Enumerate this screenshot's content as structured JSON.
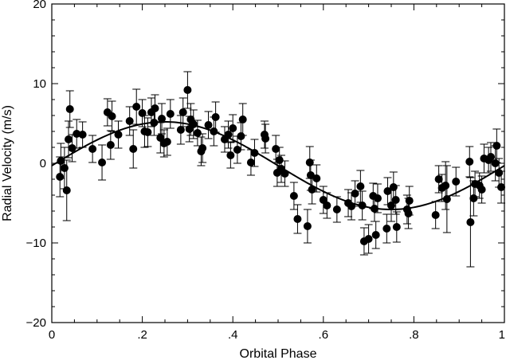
{
  "chart_data": {
    "type": "scatter",
    "title": "",
    "xlabel": "Orbital Phase",
    "ylabel": "Radial Velocity (m/s)",
    "xlim": [
      0,
      1
    ],
    "ylim": [
      -20,
      20
    ],
    "grid": false,
    "x_ticks": [
      0,
      0.2,
      0.4,
      0.6,
      0.8,
      1
    ],
    "x_tick_labels": [
      "0",
      ".2",
      ".4",
      ".6",
      ".8",
      "1"
    ],
    "y_ticks": [
      -20,
      -10,
      0,
      10,
      20
    ],
    "y_tick_labels": [
      "−20",
      "−10",
      "0",
      "10",
      "20"
    ],
    "fit_curve": {
      "type": "sinusoid",
      "semi_amplitude": 5.5,
      "offset": -0.3,
      "phase_of_max": 0.25
    },
    "points": [
      {
        "x": 0.018,
        "y": -1.7,
        "err": 2.5
      },
      {
        "x": 0.02,
        "y": 0.3,
        "err": 2.2
      },
      {
        "x": 0.028,
        "y": -0.6,
        "err": 2.6
      },
      {
        "x": 0.033,
        "y": -3.4,
        "err": 3.8
      },
      {
        "x": 0.037,
        "y": 3.0,
        "err": 2.3
      },
      {
        "x": 0.04,
        "y": 6.8,
        "err": 2.3
      },
      {
        "x": 0.045,
        "y": 1.9,
        "err": 1.7
      },
      {
        "x": 0.055,
        "y": 3.7,
        "err": 1.8
      },
      {
        "x": 0.068,
        "y": 3.6,
        "err": 1.6
      },
      {
        "x": 0.09,
        "y": 1.8,
        "err": 1.7
      },
      {
        "x": 0.111,
        "y": 0.1,
        "err": 2.2
      },
      {
        "x": 0.123,
        "y": 6.4,
        "err": 1.7
      },
      {
        "x": 0.13,
        "y": 2.3,
        "err": 1.8
      },
      {
        "x": 0.133,
        "y": 5.9,
        "err": 1.9
      },
      {
        "x": 0.147,
        "y": 3.6,
        "err": 1.7
      },
      {
        "x": 0.172,
        "y": 5.3,
        "err": 1.8
      },
      {
        "x": 0.18,
        "y": 1.8,
        "err": 2.4
      },
      {
        "x": 0.187,
        "y": 7.1,
        "err": 2.2
      },
      {
        "x": 0.2,
        "y": 6.3,
        "err": 1.7
      },
      {
        "x": 0.205,
        "y": 4.0,
        "err": 2.0
      },
      {
        "x": 0.212,
        "y": 3.9,
        "err": 1.8
      },
      {
        "x": 0.22,
        "y": 6.4,
        "err": 1.8
      },
      {
        "x": 0.226,
        "y": 5.1,
        "err": 1.6
      },
      {
        "x": 0.228,
        "y": 6.9,
        "err": 1.7
      },
      {
        "x": 0.24,
        "y": 3.2,
        "err": 1.9
      },
      {
        "x": 0.243,
        "y": 5.6,
        "err": 1.9
      },
      {
        "x": 0.248,
        "y": 2.5,
        "err": 1.7
      },
      {
        "x": 0.255,
        "y": 2.7,
        "err": 1.7
      },
      {
        "x": 0.262,
        "y": 6.2,
        "err": 1.8
      },
      {
        "x": 0.285,
        "y": 4.2,
        "err": 1.8
      },
      {
        "x": 0.29,
        "y": 6.4,
        "err": 1.8
      },
      {
        "x": 0.3,
        "y": 9.2,
        "err": 2.3
      },
      {
        "x": 0.304,
        "y": 4.3,
        "err": 1.6
      },
      {
        "x": 0.307,
        "y": 5.5,
        "err": 2.0
      },
      {
        "x": 0.313,
        "y": 4.9,
        "err": 1.8
      },
      {
        "x": 0.322,
        "y": 3.8,
        "err": 1.6
      },
      {
        "x": 0.33,
        "y": 1.5,
        "err": 1.8
      },
      {
        "x": 0.333,
        "y": 1.9,
        "err": 1.8
      },
      {
        "x": 0.346,
        "y": 4.8,
        "err": 1.7
      },
      {
        "x": 0.358,
        "y": 4.0,
        "err": 1.8
      },
      {
        "x": 0.362,
        "y": 5.8,
        "err": 1.9
      },
      {
        "x": 0.382,
        "y": 3.0,
        "err": 1.6
      },
      {
        "x": 0.39,
        "y": 3.6,
        "err": 1.7
      },
      {
        "x": 0.395,
        "y": 1.0,
        "err": 1.6
      },
      {
        "x": 0.4,
        "y": 4.4,
        "err": 1.7
      },
      {
        "x": 0.41,
        "y": 1.7,
        "err": 1.7
      },
      {
        "x": 0.418,
        "y": 3.4,
        "err": 1.7
      },
      {
        "x": 0.422,
        "y": 5.5,
        "err": 2.0
      },
      {
        "x": 0.44,
        "y": 0.1,
        "err": 1.6
      },
      {
        "x": 0.448,
        "y": 1.3,
        "err": 1.7
      },
      {
        "x": 0.47,
        "y": 3.6,
        "err": 1.7
      },
      {
        "x": 0.472,
        "y": 3.1,
        "err": 1.8
      },
      {
        "x": 0.495,
        "y": 1.8,
        "err": 1.7
      },
      {
        "x": 0.498,
        "y": -1.2,
        "err": 1.7
      },
      {
        "x": 0.503,
        "y": 0.4,
        "err": 1.6
      },
      {
        "x": 0.507,
        "y": -0.7,
        "err": 1.7
      },
      {
        "x": 0.515,
        "y": -1.3,
        "err": 1.6
      },
      {
        "x": 0.535,
        "y": -4.1,
        "err": 1.7
      },
      {
        "x": 0.543,
        "y": -7.0,
        "err": 1.8
      },
      {
        "x": 0.565,
        "y": -7.9,
        "err": 2.1
      },
      {
        "x": 0.57,
        "y": 0.1,
        "err": 2.0
      },
      {
        "x": 0.572,
        "y": -1.5,
        "err": 1.9
      },
      {
        "x": 0.575,
        "y": -3.3,
        "err": 1.8
      },
      {
        "x": 0.585,
        "y": -1.9,
        "err": 1.7
      },
      {
        "x": 0.6,
        "y": -4.6,
        "err": 1.7
      },
      {
        "x": 0.608,
        "y": -5.3,
        "err": 1.6
      },
      {
        "x": 0.63,
        "y": -5.8,
        "err": 1.6
      },
      {
        "x": 0.655,
        "y": -5.0,
        "err": 1.7
      },
      {
        "x": 0.662,
        "y": -5.4,
        "err": 1.7
      },
      {
        "x": 0.67,
        "y": -3.8,
        "err": 1.6
      },
      {
        "x": 0.682,
        "y": -2.9,
        "err": 2.0
      },
      {
        "x": 0.686,
        "y": -5.3,
        "err": 1.8
      },
      {
        "x": 0.69,
        "y": -9.8,
        "err": 1.7
      },
      {
        "x": 0.7,
        "y": -9.5,
        "err": 1.8
      },
      {
        "x": 0.71,
        "y": -4.1,
        "err": 1.6
      },
      {
        "x": 0.713,
        "y": -5.7,
        "err": 1.6
      },
      {
        "x": 0.716,
        "y": -9.0,
        "err": 1.7
      },
      {
        "x": 0.72,
        "y": -4.4,
        "err": 1.8
      },
      {
        "x": 0.74,
        "y": -8.2,
        "err": 1.8
      },
      {
        "x": 0.742,
        "y": -3.5,
        "err": 1.7
      },
      {
        "x": 0.75,
        "y": -5.3,
        "err": 2.0
      },
      {
        "x": 0.755,
        "y": -3.0,
        "err": 1.9
      },
      {
        "x": 0.76,
        "y": -4.6,
        "err": 1.8
      },
      {
        "x": 0.762,
        "y": -8.0,
        "err": 1.9
      },
      {
        "x": 0.785,
        "y": -5.8,
        "err": 1.8
      },
      {
        "x": 0.788,
        "y": -6.3,
        "err": 1.9
      },
      {
        "x": 0.79,
        "y": -4.7,
        "err": 1.8
      },
      {
        "x": 0.848,
        "y": -6.5,
        "err": 1.7
      },
      {
        "x": 0.855,
        "y": -2.0,
        "err": 1.7
      },
      {
        "x": 0.862,
        "y": -3.1,
        "err": 1.7
      },
      {
        "x": 0.87,
        "y": -2.8,
        "err": 3.0
      },
      {
        "x": 0.873,
        "y": -4.5,
        "err": 4.2
      },
      {
        "x": 0.893,
        "y": -2.3,
        "err": 1.8
      },
      {
        "x": 0.923,
        "y": 0.2,
        "err": 1.9
      },
      {
        "x": 0.925,
        "y": -7.4,
        "err": 5.6
      },
      {
        "x": 0.932,
        "y": -4.4,
        "err": 2.2
      },
      {
        "x": 0.935,
        "y": -2.6,
        "err": 1.6
      },
      {
        "x": 0.945,
        "y": -2.8,
        "err": 1.6
      },
      {
        "x": 0.95,
        "y": -3.3,
        "err": 1.7
      },
      {
        "x": 0.955,
        "y": 0.6,
        "err": 1.8
      },
      {
        "x": 0.965,
        "y": 0.4,
        "err": 1.6
      },
      {
        "x": 0.97,
        "y": 0.8,
        "err": 1.8
      },
      {
        "x": 0.98,
        "y": 0.0,
        "err": 2.2
      },
      {
        "x": 0.983,
        "y": 2.2,
        "err": 2.1
      },
      {
        "x": 0.988,
        "y": -1.2,
        "err": 1.8
      },
      {
        "x": 0.993,
        "y": -3.0,
        "err": 2.0
      }
    ]
  }
}
